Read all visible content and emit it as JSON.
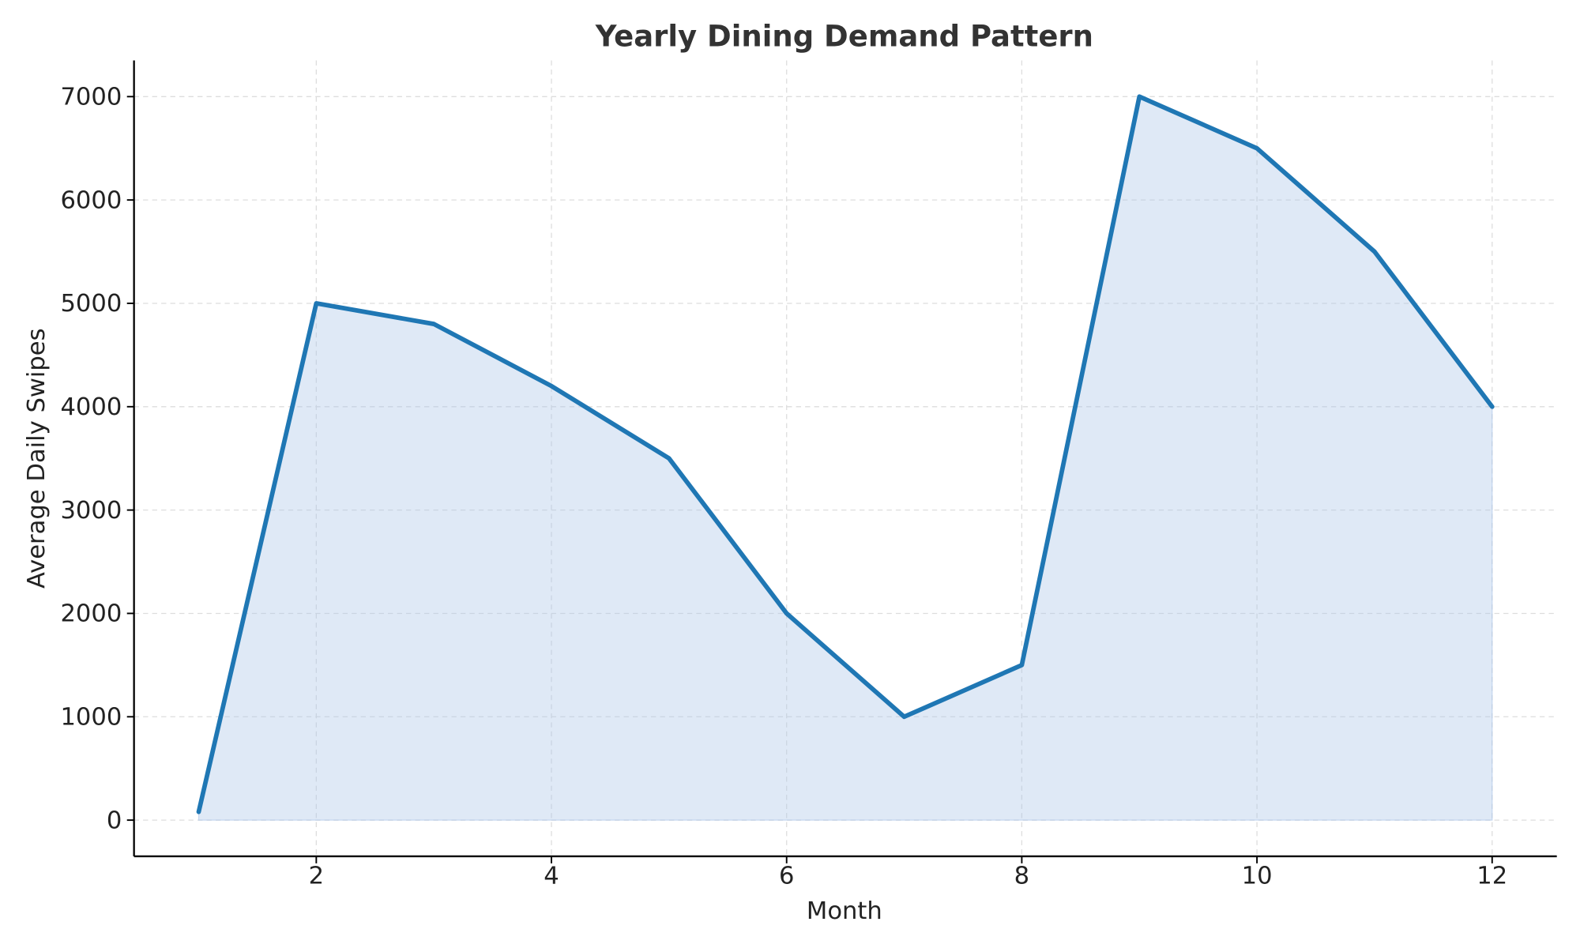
{
  "chart_data": {
    "type": "area",
    "title": "Yearly Dining Demand Pattern",
    "xlabel": "Month",
    "ylabel": "Average Daily Swipes",
    "x": [
      1,
      2,
      3,
      4,
      5,
      6,
      7,
      8,
      9,
      10,
      11,
      12
    ],
    "series": [
      {
        "values": [
          80,
          5000,
          4800,
          4200,
          3500,
          2000,
          1000,
          1500,
          7000,
          6500,
          5500,
          4000
        ]
      }
    ],
    "xlim": [
      0.45,
      12.55
    ],
    "ylim": [
      -350,
      7350
    ],
    "xticks": [
      2,
      4,
      6,
      8,
      10,
      12
    ],
    "yticks": [
      0,
      1000,
      2000,
      3000,
      4000,
      5000,
      6000,
      7000
    ],
    "grid": true,
    "legend": "none",
    "colors": {
      "line": "#1f77b4",
      "fill": "#aec7e8",
      "grid": "#dddddd",
      "title": "#333333"
    }
  }
}
